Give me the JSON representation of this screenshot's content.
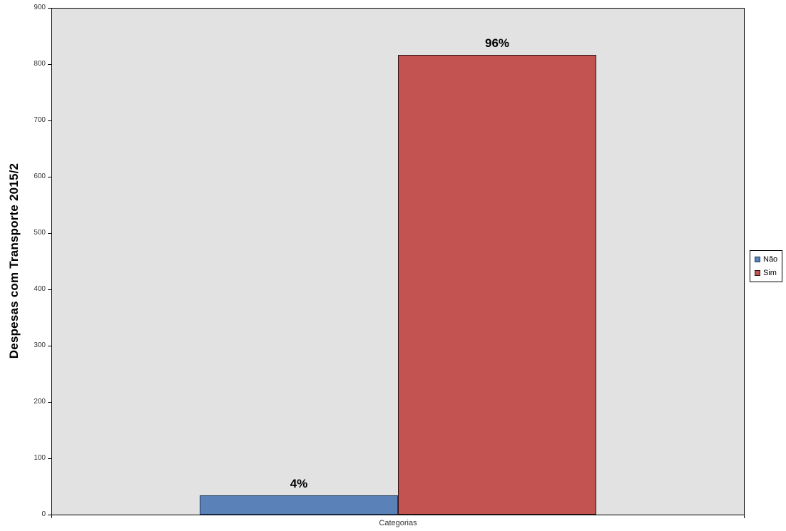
{
  "chart_data": {
    "type": "bar",
    "categories": [
      "Categorias"
    ],
    "series": [
      {
        "name": "Não",
        "values": [
          34
        ],
        "data_label": "4%",
        "color": "#5a82b8",
        "border_color": "#1e3a5f"
      },
      {
        "name": "Sim",
        "values": [
          816
        ],
        "data_label": "96%",
        "color": "#c25350",
        "border_color": "#2e1515"
      }
    ],
    "title": "",
    "xlabel": "Categorias",
    "ylabel": "Despesas com Transporte 2015/2",
    "ylim": [
      0,
      900
    ],
    "ytick_interval": 100,
    "yticks": [
      0,
      100,
      200,
      300,
      400,
      500,
      600,
      700,
      800,
      900
    ],
    "grid": false,
    "legend_position": "right",
    "plot_background": "#e2e2e2"
  },
  "legend": {
    "items": [
      {
        "label": "Não",
        "color": "#5a82b8"
      },
      {
        "label": "Sim",
        "color": "#c25350"
      }
    ]
  }
}
